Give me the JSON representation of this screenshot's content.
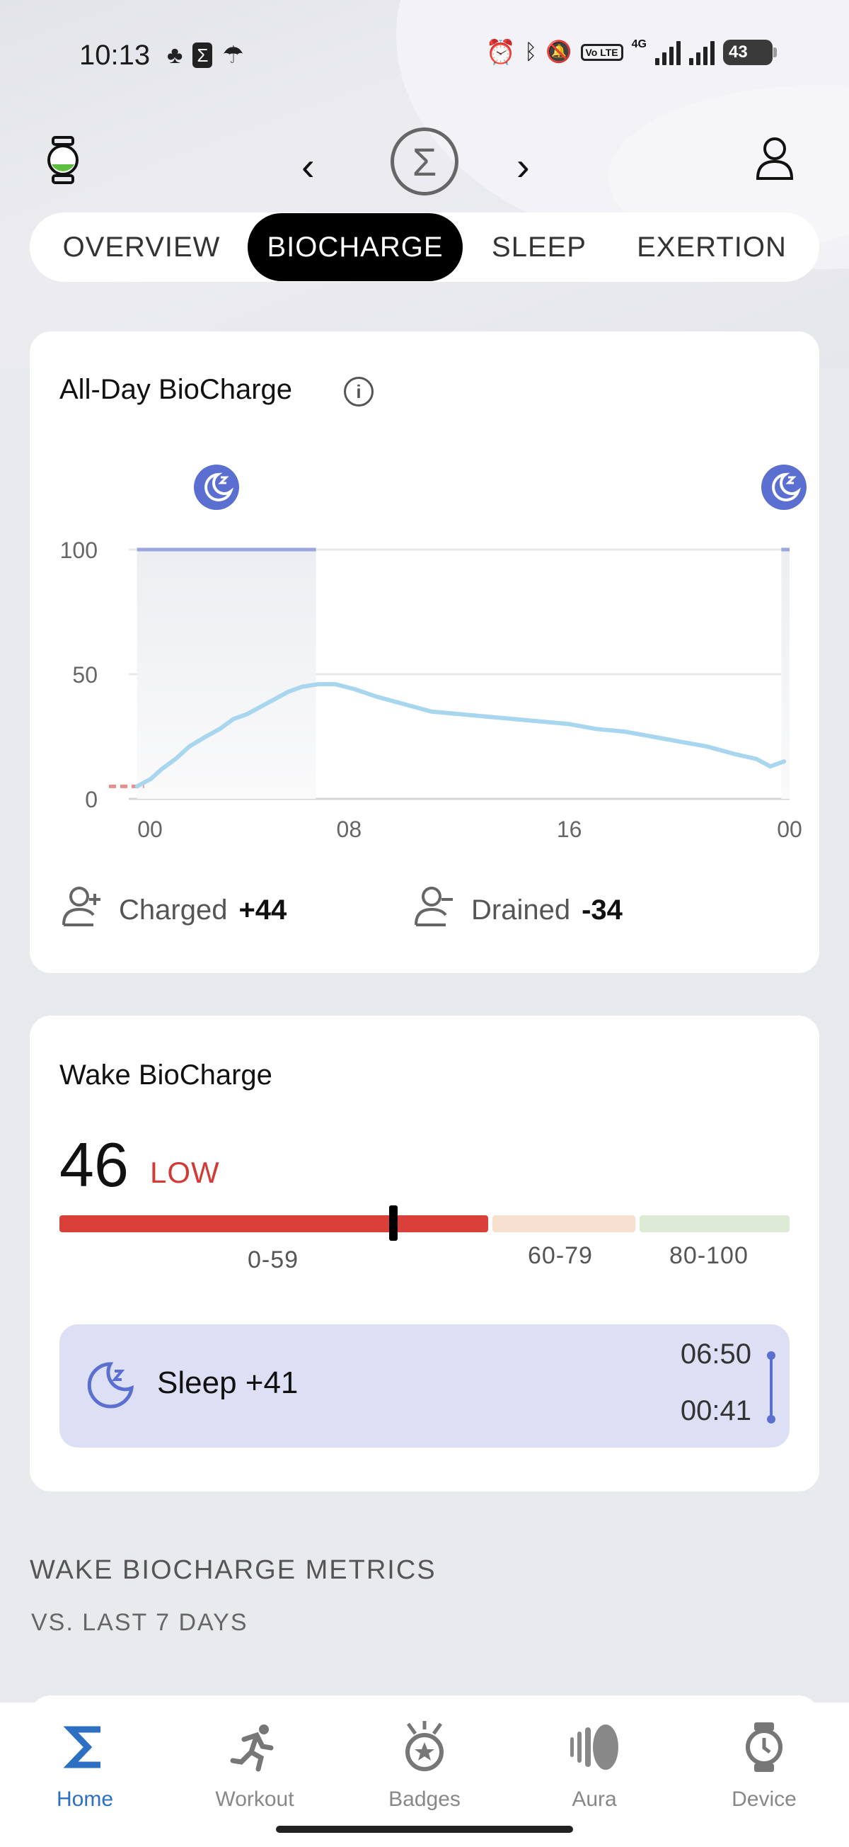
{
  "status_bar": {
    "time": "10:13",
    "network": "4G",
    "volte": "Vo LTE",
    "battery": "43"
  },
  "header": {
    "prev_icon": "chevron-left-icon",
    "next_icon": "chevron-right-icon",
    "logo_icon": "sigma-logo-icon",
    "device_icon": "watch-icon",
    "profile_icon": "person-icon"
  },
  "tabs": [
    {
      "label": "OVERVIEW",
      "active": false
    },
    {
      "label": "BIOCHARGE",
      "active": true
    },
    {
      "label": "SLEEP",
      "active": false
    },
    {
      "label": "EXERTION",
      "active": false
    }
  ],
  "all_day_card": {
    "title": "All-Day BioCharge",
    "charged_label": "Charged",
    "charged_value": "+44",
    "drained_label": "Drained",
    "drained_value": "-34"
  },
  "chart_data": {
    "type": "line",
    "title": "All-Day BioCharge",
    "xlabel": "",
    "ylabel": "",
    "x_ticks": [
      "00",
      "08",
      "16",
      "00"
    ],
    "y_ticks": [
      0,
      50,
      100
    ],
    "xlim": [
      0,
      24
    ],
    "ylim": [
      0,
      100
    ],
    "grid": true,
    "series": [
      {
        "color": "#a9d6ef",
        "x": [
          0.3,
          0.8,
          1.2,
          1.7,
          2.2,
          2.8,
          3.3,
          3.8,
          4.3,
          4.8,
          5.3,
          5.8,
          6.3,
          6.9,
          7.5,
          8.2,
          9.0,
          10.0,
          11.0,
          12.0,
          13.0,
          14.0,
          15.0,
          16.0,
          17.0,
          18.0,
          19.0,
          20.0,
          21.0,
          22.0,
          22.8,
          23.3,
          23.8
        ],
        "y": [
          5,
          8,
          12,
          16,
          21,
          25,
          28,
          32,
          34,
          37,
          40,
          43,
          45,
          46,
          46,
          44,
          41,
          38,
          35,
          34,
          33,
          32,
          31,
          30,
          28,
          27,
          25,
          23,
          21,
          18,
          16,
          13,
          15
        ]
      }
    ],
    "sleep_periods": [
      {
        "start": 0.3,
        "end": 6.8,
        "level": 100
      },
      {
        "start": 23.7,
        "end": 24.0,
        "level": 100
      }
    ],
    "low_segment": {
      "start": 0.0,
      "end": 0.3,
      "y": 5,
      "color": "#e88f8f"
    }
  },
  "wake_card": {
    "title": "Wake BioCharge",
    "score": "46",
    "level": "LOW",
    "ranges": [
      {
        "label": "0-59",
        "color": "#d9403a"
      },
      {
        "label": "60-79",
        "color": "#f6e1cf"
      },
      {
        "label": "80-100",
        "color": "#dcead6"
      }
    ],
    "marker_value": 46,
    "sleep_label": "Sleep +41",
    "sleep_start": "06:50",
    "sleep_end": "00:41"
  },
  "metrics_section": {
    "title": "WAKE BIOCHARGE METRICS",
    "subtitle": "VS. LAST 7 DAYS"
  },
  "bottom_nav": [
    {
      "label": "Home",
      "icon": "sigma-home-icon",
      "active": true
    },
    {
      "label": "Workout",
      "icon": "running-icon",
      "active": false
    },
    {
      "label": "Badges",
      "icon": "badge-icon",
      "active": false
    },
    {
      "label": "Aura",
      "icon": "aura-icon",
      "active": false
    },
    {
      "label": "Device",
      "icon": "watch-device-icon",
      "active": false
    }
  ],
  "colors": {
    "accent_blue": "#5a6fd0",
    "home_blue": "#2d6fc2",
    "low_red": "#d33a35",
    "line_blue": "#a9d6ef"
  }
}
